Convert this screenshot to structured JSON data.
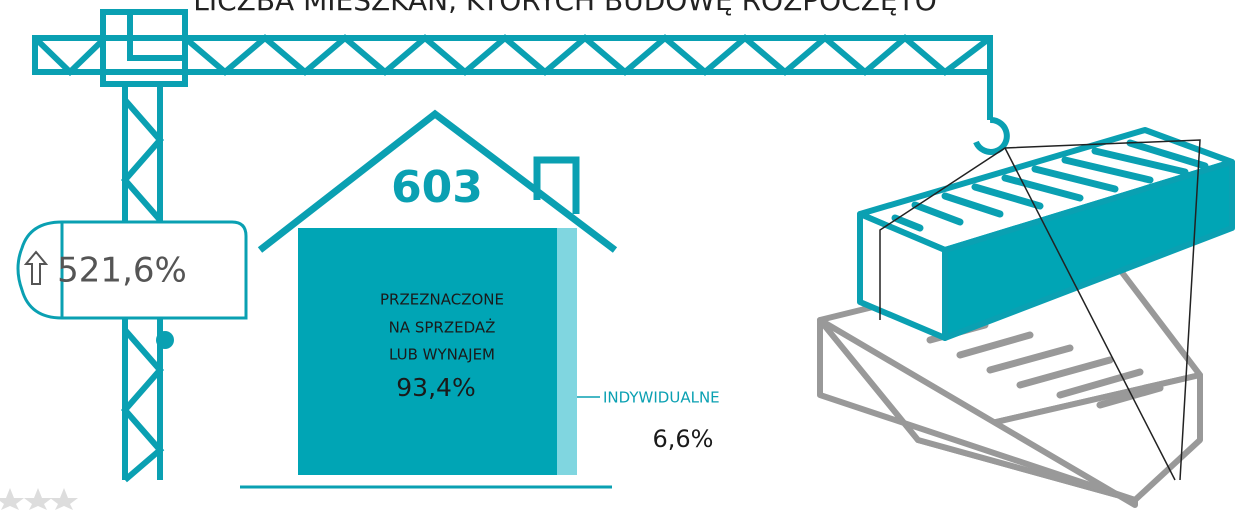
{
  "header": {
    "title": "LICZBA MIESZKAŃ, KTÓRYCH BUDOWĘ ROZPOCZĘTO"
  },
  "total": "603",
  "change": "521,6%",
  "segments": [
    {
      "label_lines": [
        "PRZEZNACZONE",
        "NA SPRZEDAŻ",
        "LUB WYNAJEM"
      ],
      "value": "93,4%"
    },
    {
      "label_lines": [
        "INDYWIDUALNE"
      ],
      "value": "6,6%"
    }
  ]
}
